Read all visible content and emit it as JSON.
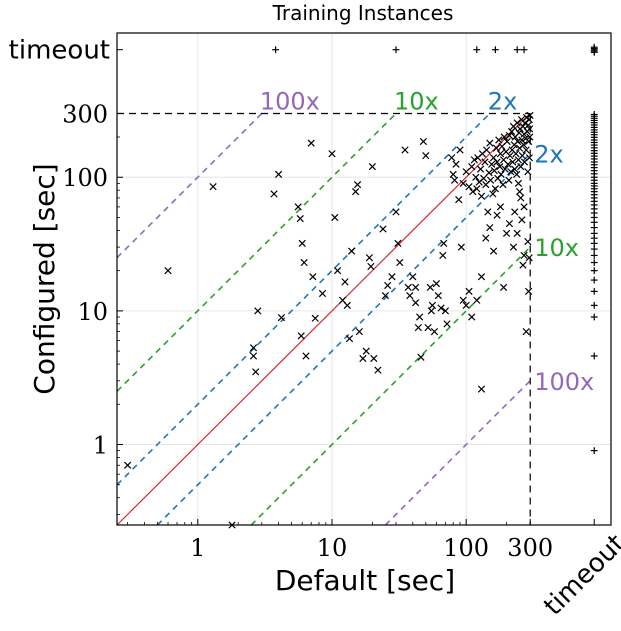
{
  "chart_data": {
    "type": "scatter",
    "title": "Training Instances",
    "xlabel": "Default [sec]",
    "ylabel": "Configured [sec]",
    "xscale": "log",
    "yscale": "log",
    "xlim": [
      0.25,
      1200
    ],
    "ylim": [
      0.25,
      1200
    ],
    "grid": true,
    "x_ticks": [
      {
        "value": 1,
        "label": "1"
      },
      {
        "value": 10,
        "label": "10"
      },
      {
        "value": 100,
        "label": "100"
      },
      {
        "value": 300,
        "label": "300"
      },
      {
        "value": 900,
        "label": "timeout"
      }
    ],
    "y_ticks": [
      {
        "value": 1,
        "label": "1"
      },
      {
        "value": 10,
        "label": "10"
      },
      {
        "value": 100,
        "label": "100"
      },
      {
        "value": 300,
        "label": "300"
      },
      {
        "value": 900,
        "label": "timeout"
      }
    ],
    "cutoff": 300,
    "timeout_value": 900,
    "reference_lines": [
      {
        "factor": 1,
        "color": "#d62728",
        "style": "solid",
        "label": ""
      },
      {
        "factor": 2,
        "color": "#1f77b4",
        "style": "dashed",
        "label": "2x"
      },
      {
        "factor": 10,
        "color": "#2ca02c",
        "style": "dashed",
        "label": "10x"
      },
      {
        "factor": 100,
        "color": "#9467bd",
        "style": "dashed",
        "label": "100x"
      }
    ],
    "series": [
      {
        "marker": "x",
        "points": [
          [
            0.3,
            0.7
          ],
          [
            0.6,
            20
          ],
          [
            1.3,
            85
          ],
          [
            1.8,
            0.25
          ],
          [
            2.6,
            4.6
          ],
          [
            2.6,
            5.3
          ],
          [
            2.7,
            3.5
          ],
          [
            2.8,
            10
          ],
          [
            3.7,
            75
          ],
          [
            4,
            105
          ],
          [
            4.2,
            8.9
          ],
          [
            5.6,
            60
          ],
          [
            5.8,
            49
          ],
          [
            5.9,
            6.5
          ],
          [
            6,
            32
          ],
          [
            6.2,
            23
          ],
          [
            6.4,
            4.6
          ],
          [
            7,
            180
          ],
          [
            7.2,
            18
          ],
          [
            7.5,
            8.8
          ],
          [
            8.5,
            13.5
          ],
          [
            10,
            150
          ],
          [
            10.5,
            50
          ],
          [
            11,
            20
          ],
          [
            12,
            12
          ],
          [
            12.5,
            16.5
          ],
          [
            13,
            11
          ],
          [
            13.5,
            6.2
          ],
          [
            14,
            28
          ],
          [
            15,
            78
          ],
          [
            15.5,
            88
          ],
          [
            16,
            7
          ],
          [
            17,
            4.4
          ],
          [
            18,
            5
          ],
          [
            19,
            25
          ],
          [
            19.5,
            21.5
          ],
          [
            20,
            120
          ],
          [
            20.5,
            4.4
          ],
          [
            22,
            3.6
          ],
          [
            24,
            41
          ],
          [
            25,
            13
          ],
          [
            26,
            15.5
          ],
          [
            28,
            18
          ],
          [
            30,
            55
          ],
          [
            31,
            32
          ],
          [
            32,
            23
          ],
          [
            35,
            160
          ],
          [
            37,
            15
          ],
          [
            38,
            13
          ],
          [
            40,
            18
          ],
          [
            42,
            15
          ],
          [
            42,
            11.5
          ],
          [
            44,
            7.5
          ],
          [
            45,
            9
          ],
          [
            46,
            4.5
          ],
          [
            48,
            185
          ],
          [
            50,
            145
          ],
          [
            52,
            7.5
          ],
          [
            54,
            15
          ],
          [
            55,
            10
          ],
          [
            56,
            11
          ],
          [
            58,
            7
          ],
          [
            60,
            16
          ],
          [
            62,
            13
          ],
          [
            65,
            10.5
          ],
          [
            67,
            26
          ],
          [
            68,
            32
          ],
          [
            70,
            10
          ],
          [
            72,
            8
          ],
          [
            78,
            140
          ],
          [
            80,
            105
          ],
          [
            82,
            95
          ],
          [
            84,
            125
          ],
          [
            88,
            68
          ],
          [
            90,
            160
          ],
          [
            92,
            30
          ],
          [
            95,
            90
          ],
          [
            100,
            110
          ],
          [
            105,
            85
          ],
          [
            110,
            120
          ],
          [
            112,
            78
          ],
          [
            115,
            135
          ],
          [
            118,
            100
          ],
          [
            120,
            82
          ],
          [
            122,
            140
          ],
          [
            125,
            92
          ],
          [
            128,
            115
          ],
          [
            130,
            72
          ],
          [
            132,
            150
          ],
          [
            135,
            98
          ],
          [
            138,
            130
          ],
          [
            140,
            88
          ],
          [
            142,
            160
          ],
          [
            145,
            55
          ],
          [
            148,
            108
          ],
          [
            150,
            180
          ],
          [
            152,
            95
          ],
          [
            155,
            125
          ],
          [
            158,
            75
          ],
          [
            160,
            140
          ],
          [
            162,
            112
          ],
          [
            165,
            82
          ],
          [
            168,
            165
          ],
          [
            170,
            130
          ],
          [
            172,
            98
          ],
          [
            175,
            190
          ],
          [
            178,
            120
          ],
          [
            180,
            150
          ],
          [
            182,
            105
          ],
          [
            185,
            170
          ],
          [
            188,
            88
          ],
          [
            190,
            135
          ],
          [
            192,
            200
          ],
          [
            195,
            115
          ],
          [
            198,
            155
          ],
          [
            200,
            38
          ],
          [
            202,
            185
          ],
          [
            205,
            125
          ],
          [
            208,
            95
          ],
          [
            210,
            205
          ],
          [
            212,
            145
          ],
          [
            215,
            110
          ],
          [
            218,
            220
          ],
          [
            220,
            160
          ],
          [
            222,
            130
          ],
          [
            225,
            240
          ],
          [
            228,
            175
          ],
          [
            230,
            115
          ],
          [
            232,
            200
          ],
          [
            235,
            150
          ],
          [
            238,
            105
          ],
          [
            240,
            255
          ],
          [
            242,
            185
          ],
          [
            245,
            135
          ],
          [
            248,
            215
          ],
          [
            250,
            165
          ],
          [
            252,
            230
          ],
          [
            255,
            120
          ],
          [
            258,
            270
          ],
          [
            260,
            190
          ],
          [
            262,
            145
          ],
          [
            265,
            240
          ],
          [
            268,
            175
          ],
          [
            270,
            210
          ],
          [
            272,
            130
          ],
          [
            275,
            255
          ],
          [
            278,
            195
          ],
          [
            280,
            160
          ],
          [
            282,
            280
          ],
          [
            285,
            220
          ],
          [
            288,
            110
          ],
          [
            290,
            245
          ],
          [
            292,
            185
          ],
          [
            295,
            270
          ],
          [
            296,
            140
          ],
          [
            297,
            230
          ],
          [
            298,
            200
          ],
          [
            299,
            290
          ],
          [
            260,
            48
          ],
          [
            270,
            60
          ],
          [
            250,
            78
          ],
          [
            230,
            55
          ],
          [
            240,
            38
          ],
          [
            265,
            22
          ],
          [
            255,
            70
          ],
          [
            245,
            90
          ],
          [
            225,
            30
          ],
          [
            210,
            45
          ],
          [
            190,
            15
          ],
          [
            180,
            60
          ],
          [
            170,
            52
          ],
          [
            160,
            28
          ],
          [
            150,
            42
          ],
          [
            140,
            35
          ],
          [
            130,
            18
          ],
          [
            120,
            12
          ],
          [
            110,
            9
          ],
          [
            105,
            14
          ],
          [
            100,
            11
          ],
          [
            95,
            12
          ],
          [
            130,
            2.6
          ],
          [
            280,
            7
          ],
          [
            295,
            25
          ],
          [
            292,
            14
          ],
          [
            288,
            33
          ],
          [
            270,
            26
          ]
        ]
      },
      {
        "marker": "+",
        "points": [
          [
            30,
            900
          ],
          [
            120,
            900
          ],
          [
            165,
            900
          ],
          [
            240,
            900
          ],
          [
            270,
            900
          ],
          [
            900,
            900
          ],
          [
            900,
            880
          ],
          [
            900,
            860
          ],
          [
            900,
            920
          ],
          [
            900,
            940
          ],
          [
            3.8,
            900
          ]
        ]
      },
      {
        "marker": "+",
        "points": [
          [
            900,
            0.9
          ],
          [
            900,
            4.6
          ],
          [
            900,
            9
          ],
          [
            900,
            11
          ],
          [
            900,
            14
          ],
          [
            900,
            17
          ],
          [
            900,
            20
          ],
          [
            900,
            23
          ],
          [
            900,
            26
          ],
          [
            900,
            29
          ],
          [
            900,
            32
          ],
          [
            900,
            35
          ],
          [
            900,
            38
          ],
          [
            900,
            42
          ],
          [
            900,
            46
          ],
          [
            900,
            50
          ],
          [
            900,
            54
          ],
          [
            900,
            58
          ],
          [
            900,
            62
          ],
          [
            900,
            66
          ],
          [
            900,
            70
          ],
          [
            900,
            74
          ],
          [
            900,
            78
          ],
          [
            900,
            82
          ],
          [
            900,
            86
          ],
          [
            900,
            90
          ],
          [
            900,
            95
          ],
          [
            900,
            100
          ],
          [
            900,
            106
          ],
          [
            900,
            112
          ],
          [
            900,
            118
          ],
          [
            900,
            124
          ],
          [
            900,
            130
          ],
          [
            900,
            137
          ],
          [
            900,
            144
          ],
          [
            900,
            151
          ],
          [
            900,
            158
          ],
          [
            900,
            166
          ],
          [
            900,
            174
          ],
          [
            900,
            182
          ],
          [
            900,
            190
          ],
          [
            900,
            199
          ],
          [
            900,
            208
          ],
          [
            900,
            217
          ],
          [
            900,
            226
          ],
          [
            900,
            236
          ],
          [
            900,
            246
          ],
          [
            900,
            256
          ],
          [
            900,
            266
          ],
          [
            900,
            276
          ],
          [
            900,
            286
          ],
          [
            900,
            295
          ]
        ]
      }
    ]
  }
}
